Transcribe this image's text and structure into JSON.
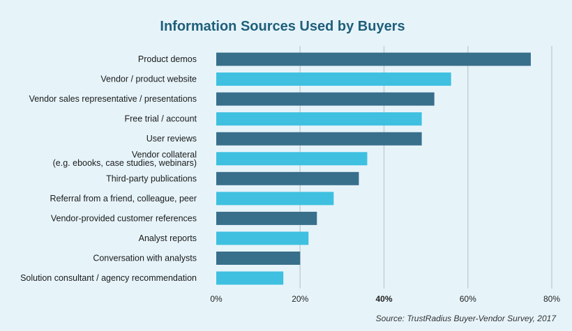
{
  "chart_data": {
    "type": "bar",
    "orientation": "horizontal",
    "title": "Information Sources Used by Buyers",
    "categories": [
      [
        "Product demos"
      ],
      [
        "Vendor / product website"
      ],
      [
        "Vendor sales representative / presentations"
      ],
      [
        "Free trial / account"
      ],
      [
        "User reviews"
      ],
      [
        "Vendor collateral",
        "(e.g. ebooks, case studies, webinars)"
      ],
      [
        "Third-party publications"
      ],
      [
        "Referral from a friend, colleague, peer"
      ],
      [
        "Vendor-provided customer references"
      ],
      [
        "Analyst reports"
      ],
      [
        "Conversation with analysts"
      ],
      [
        "Solution consultant / agency recommendation"
      ]
    ],
    "values": [
      75,
      56,
      52,
      49,
      49,
      36,
      34,
      28,
      24,
      22,
      20,
      16
    ],
    "xlim": [
      0,
      80
    ],
    "xticks": [
      0,
      20,
      40,
      60,
      80
    ],
    "xtick_labels": [
      "0%",
      "20%",
      "40%",
      "60%",
      "80%"
    ],
    "highlight_tick": "40%",
    "colors": [
      "#386f8b",
      "#3fc0e0"
    ],
    "grid": true,
    "source": "Source: TrustRadius Buyer-Vendor Survey, 2017"
  }
}
